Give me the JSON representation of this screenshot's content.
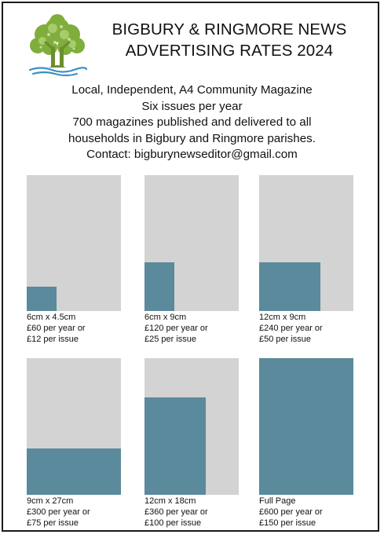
{
  "header": {
    "title_line1": "BIGBURY & RINGMORE NEWS",
    "title_line2": "ADVERTISING RATES 2024"
  },
  "intro": {
    "line1": "Local, Independent, A4 Community Magazine",
    "line2": "Six issues per year",
    "line3": "700 magazines published and delivered to all",
    "line4": "households in Bigbury and Ringmore parishes.",
    "line5": "Contact: bigburynewseditor@gmail.com"
  },
  "colors": {
    "ad_fill": "#5a8a9b",
    "page_background": "#d3d3d3"
  },
  "ads": [
    {
      "size": "6cm x 4.5cm",
      "per_year": "£60 per year or",
      "per_issue": "£12 per issue",
      "width_fraction": 0.32,
      "height_fraction": 0.18
    },
    {
      "size": "6cm x 9cm",
      "per_year": "£120 per year or",
      "per_issue": "£25 per issue",
      "width_fraction": 0.32,
      "height_fraction": 0.36
    },
    {
      "size": "12cm x 9cm",
      "per_year": "£240 per year or",
      "per_issue": "£50 per issue",
      "width_fraction": 0.65,
      "height_fraction": 0.36
    },
    {
      "size": "9cm x 27cm",
      "per_year": "£300 per year or",
      "per_issue": "£75 per issue",
      "width_fraction": 1.0,
      "height_fraction": 0.34
    },
    {
      "size": "12cm x 18cm",
      "per_year": "£360 per year or",
      "per_issue": "£100 per issue",
      "width_fraction": 0.65,
      "height_fraction": 0.71
    },
    {
      "size": "Full Page",
      "per_year": "£600 per year or",
      "per_issue": "£150 per issue",
      "width_fraction": 1.0,
      "height_fraction": 1.0
    }
  ]
}
